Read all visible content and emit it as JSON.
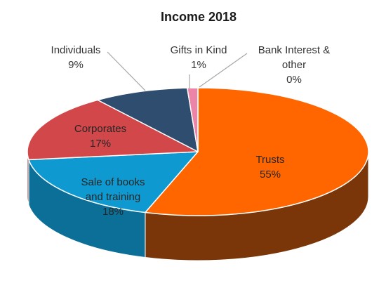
{
  "chart_data": {
    "type": "pie",
    "title": "Income 2018",
    "slices": [
      {
        "label": "Trusts",
        "value": 55,
        "display": "55%",
        "color": "#ff6600",
        "side": "#7a3608"
      },
      {
        "label": "Sale of books and training",
        "label_lines": [
          "Sale of books",
          "and training"
        ],
        "value": 18,
        "display": "18%",
        "color": "#0e9ad0",
        "side": "#0b6f98"
      },
      {
        "label": "Corporates",
        "value": 17,
        "display": "17%",
        "color": "#d1474a",
        "side": "#8e2e31"
      },
      {
        "label": "Individuals",
        "value": 9,
        "display": "9%",
        "color": "#2f4d6e",
        "side": "#1d3048"
      },
      {
        "label": "Gifts in Kind",
        "value": 1,
        "display": "1%",
        "color": "#ec84a8",
        "side": "#b05577"
      },
      {
        "label": "Bank Interest & other",
        "label_lines": [
          "Bank Interest &",
          "other"
        ],
        "value": 0,
        "display": "0%",
        "color": "#9bbb59",
        "side": "#6d8a3a"
      }
    ]
  }
}
